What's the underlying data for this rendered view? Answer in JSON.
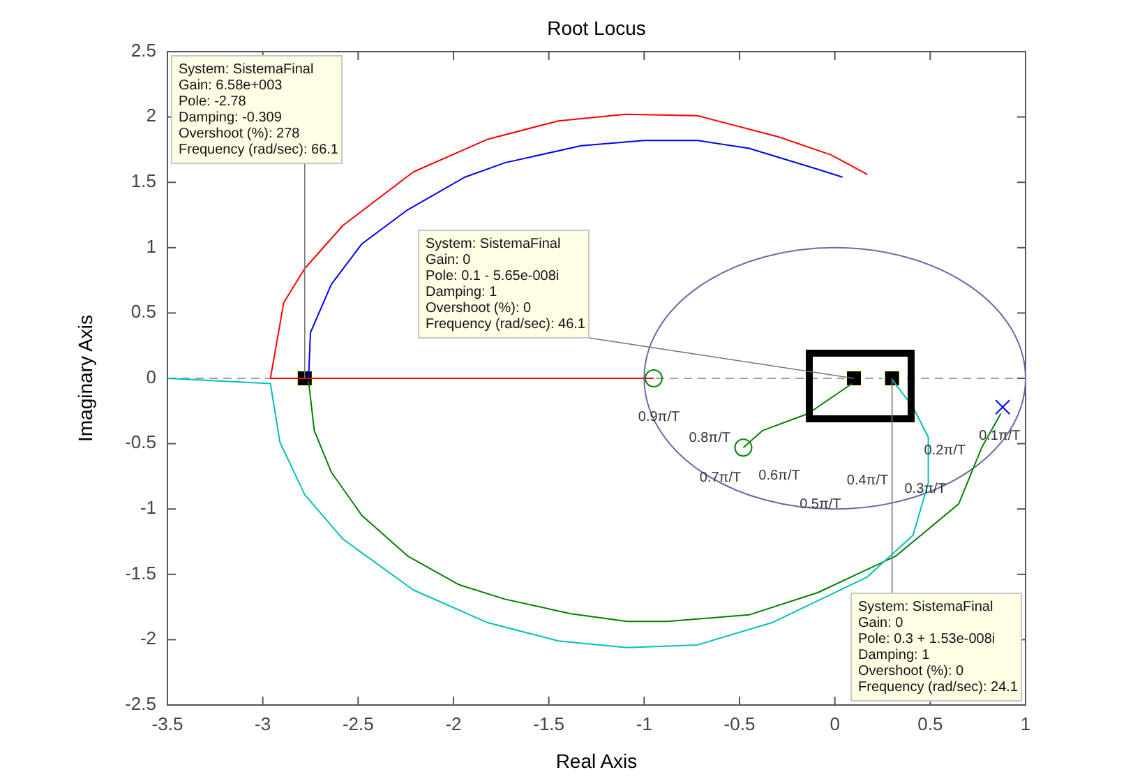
{
  "chart_data": {
    "type": "line",
    "title": "Root Locus",
    "xlabel": "Real Axis",
    "ylabel": "Imaginary Axis",
    "xlim": [
      -3.5,
      1
    ],
    "ylim": [
      -2.5,
      2.5
    ],
    "xticks": [
      -3.5,
      -3,
      -2.5,
      -2,
      -1.5,
      -1,
      -0.5,
      0,
      0.5,
      1
    ],
    "yticks": [
      -2.5,
      -2,
      -1.5,
      -1,
      -0.5,
      0,
      0.5,
      1,
      1.5,
      2,
      2.5
    ],
    "ref_lines": [
      {
        "axis": "y",
        "value": 0,
        "color": "#808080",
        "line_style": "dashed"
      }
    ],
    "series": [
      {
        "color": "#ff0000",
        "x": [
          -0.95,
          -2.96,
          -2.89,
          -2.78,
          -2.58,
          -2.21,
          -1.82,
          -1.45,
          -1.1,
          -0.72,
          -0.3,
          -0.02,
          0.17
        ],
        "values": [
          0,
          0,
          0.58,
          0.84,
          1.17,
          1.58,
          1.83,
          1.97,
          2.02,
          2.01,
          1.85,
          1.71,
          1.56
        ]
      },
      {
        "color": "#0000ff",
        "x": [
          -2.76,
          -2.75,
          -2.64,
          -2.48,
          -2.24,
          -1.94,
          -1.73,
          -1.33,
          -1,
          -0.72,
          -0.45,
          -0.09,
          0.04
        ],
        "values": [
          0,
          0.35,
          0.72,
          1.03,
          1.29,
          1.54,
          1.65,
          1.78,
          1.82,
          1.82,
          1.76,
          1.6,
          1.54
        ]
      },
      {
        "color": "#008000",
        "x": [
          0.87,
          0.77,
          0.65,
          0.32,
          -0.09,
          -0.45,
          -0.88,
          -1.09,
          -1.39,
          -1.73,
          -1.97,
          -2.24,
          -2.48,
          -2.64,
          -2.73,
          -2.76
        ],
        "values": [
          -0.27,
          -0.53,
          -0.96,
          -1.36,
          -1.64,
          -1.81,
          -1.86,
          -1.86,
          -1.8,
          -1.69,
          -1.58,
          -1.36,
          -1.05,
          -0.72,
          -0.4,
          -0.02
        ]
      },
      {
        "color": "#008000",
        "x": [
          0.09,
          -0.14,
          -0.38,
          -0.48
        ],
        "values": [
          -0.04,
          -0.27,
          -0.4,
          -0.53
        ]
      },
      {
        "color": "#00bfbf",
        "x": [
          -3.5,
          -2.96,
          -2.91,
          -2.78,
          -2.58,
          -2.21,
          -1.82,
          -1.45,
          -1.09,
          -0.72,
          -0.33,
          0.17,
          0.41,
          0.49,
          0.49,
          0.41,
          0.3
        ],
        "values": [
          0,
          -0.04,
          -0.49,
          -0.89,
          -1.23,
          -1.62,
          -1.87,
          -2.01,
          -2.06,
          -2.04,
          -1.87,
          -1.52,
          -1.2,
          -0.8,
          -0.45,
          -0.22,
          -0.01
        ]
      },
      {
        "type": "scatter",
        "marker": "circle",
        "color": "#008000",
        "x": [
          -0.95,
          -0.48
        ],
        "values": [
          0,
          -0.53
        ]
      },
      {
        "type": "scatter",
        "marker": "cross",
        "color": "#0000ff",
        "x": [
          0.88
        ],
        "values": [
          -0.22
        ]
      }
    ],
    "annotations": [
      "0.9π/T",
      "0.8π/T",
      "0.7π/T",
      "0.6π/T",
      "0.5π/T",
      "0.4π/T",
      "0.3π/T",
      "0.2π/T",
      "0.1π/T",
      {
        "text": "System: SistemaFinal\nGain: 6.58e+003\nPole: -2.78\nDamping: -0.309\nOvershoot (%): 278\nFrequency (rad/sec): 66.1",
        "x": -2.78,
        "y": 0
      },
      {
        "text": "System: SistemaFinal\nGain: 0\nPole: 0.3 + 1.53e-008i\nDamping: 1\nOvershoot (%): 0\nFrequency (rad/sec): 24.1",
        "x": 0.3,
        "y": 0
      },
      {
        "text": "System: SistemaFinal\nGain: 0\nPole: 0.1 - 5.65e-008i\nDamping: 1\nOvershoot (%): 0\nFrequency (rad/sec): 46.1",
        "x": 0.1,
        "y": 0
      }
    ]
  }
}
